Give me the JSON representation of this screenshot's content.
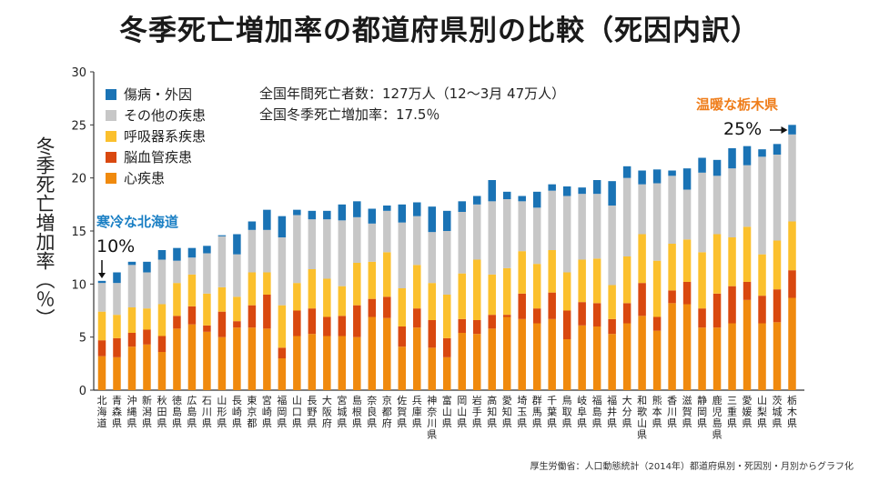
{
  "title": "冬季死亡増加率の都道府県別の比較（死因内訳）",
  "source": "厚生労働省：人口動態統計（2014年）都道府県別・死因別・月別からグラフ化",
  "info": {
    "line1": "全国年間死亡者数：127万人（12〜3月 47万人）",
    "line2": "全国冬季死亡増加率：17.5％"
  },
  "annotations": {
    "cold": "寒冷な北海道",
    "warm": "温暖な栃木県",
    "low_value": "10%",
    "high_value": "25%"
  },
  "colors": {
    "heart": "#f08a0e",
    "cerebro": "#d9480f",
    "resp": "#fbc02d",
    "other": "#c7c7c7",
    "injury": "#1a73b5",
    "anno_blue": "#1a7fc4",
    "anno_orange": "#ef7d1a"
  },
  "chart_data": {
    "type": "bar",
    "stacked": true,
    "ylabel": "冬季死亡増加率（％）",
    "ylim": [
      0,
      30
    ],
    "yticks": [
      0,
      5,
      10,
      15,
      20,
      25,
      30
    ],
    "grid": false,
    "legend_position": "top-left",
    "categories": [
      "北海道",
      "青森県",
      "沖縄県",
      "新潟県",
      "秋田県",
      "徳島県",
      "広島県",
      "石川県",
      "山形県",
      "長崎県",
      "東京都",
      "宮崎県",
      "福岡県",
      "山口県",
      "長野県",
      "大阪府",
      "宮城県",
      "島根県",
      "奈良県",
      "京都府",
      "佐賀県",
      "兵庫県",
      "神奈川県",
      "富山県",
      "岡山県",
      "岩手県",
      "高知県",
      "愛知県",
      "埼玉県",
      "群馬県",
      "千葉県",
      "鳥取県",
      "岐阜県",
      "福島県",
      "福井県",
      "大分県",
      "和歌山県",
      "熊本県",
      "香川県",
      "滋賀県",
      "静岡県",
      "鹿児島県",
      "三重県",
      "愛媛県",
      "山梨県",
      "茨城県",
      "栃木県"
    ],
    "series": [
      {
        "name": "心疾患",
        "values": [
          3.2,
          3.1,
          4.1,
          4.3,
          3.6,
          5.8,
          6.2,
          5.5,
          5.0,
          5.9,
          5.9,
          5.8,
          3.0,
          5.1,
          5.3,
          5.1,
          5.1,
          5.0,
          6.9,
          6.8,
          4.1,
          5.9,
          4.0,
          3.1,
          5.4,
          5.3,
          5.8,
          6.9,
          6.7,
          6.3,
          6.7,
          4.8,
          6.1,
          6.0,
          5.3,
          6.3,
          7.0,
          5.6,
          8.2,
          8.1,
          5.9,
          5.9,
          6.3,
          8.5,
          6.3,
          6.4,
          8.7
        ]
      },
      {
        "name": "脳血管疾患",
        "values": [
          1.5,
          1.8,
          1.3,
          1.4,
          1.5,
          1.2,
          1.7,
          0.6,
          2.4,
          0.6,
          2.1,
          3.2,
          1.0,
          2.4,
          2.4,
          1.8,
          1.9,
          3.0,
          1.7,
          2.0,
          1.9,
          1.8,
          2.6,
          1.8,
          1.3,
          1.3,
          1.3,
          0.2,
          2.4,
          1.4,
          2.5,
          2.7,
          2.2,
          2.2,
          1.4,
          1.9,
          3.1,
          1.3,
          1.2,
          2.1,
          1.8,
          3.2,
          3.5,
          1.7,
          2.6,
          3.1,
          2.6
        ]
      },
      {
        "name": "呼吸器系疾患",
        "values": [
          2.7,
          2.2,
          2.4,
          2.0,
          3.0,
          3.1,
          3.0,
          3.0,
          2.3,
          2.3,
          3.1,
          2.1,
          4.0,
          2.6,
          3.7,
          3.6,
          2.8,
          4.0,
          3.5,
          4.2,
          3.6,
          4.1,
          3.5,
          4.1,
          4.3,
          5.7,
          3.8,
          4.4,
          4.0,
          4.2,
          4.0,
          3.6,
          4.0,
          4.2,
          3.2,
          4.4,
          4.6,
          5.3,
          4.4,
          4.0,
          5.3,
          5.6,
          4.6,
          5.2,
          3.9,
          4.6,
          4.6
        ]
      },
      {
        "name": "その他の疾患",
        "values": [
          2.7,
          3.0,
          4.0,
          3.4,
          4.2,
          2.1,
          1.6,
          3.8,
          4.8,
          4.0,
          4.0,
          4.0,
          6.4,
          6.4,
          4.7,
          5.6,
          6.2,
          4.3,
          3.6,
          3.9,
          6.2,
          4.6,
          4.8,
          6.0,
          5.8,
          5.2,
          6.9,
          6.5,
          4.7,
          5.3,
          5.6,
          7.2,
          6.2,
          6.1,
          7.5,
          7.4,
          4.7,
          7.3,
          6.4,
          4.7,
          7.5,
          5.5,
          6.5,
          5.8,
          9.2,
          8.1,
          8.2
        ]
      },
      {
        "name": "傷病・外因",
        "values": [
          0.2,
          1.0,
          0.3,
          1.0,
          0.9,
          1.2,
          0.9,
          0.7,
          0.1,
          1.9,
          0.8,
          1.9,
          2.0,
          0.5,
          0.8,
          0.8,
          1.5,
          1.5,
          1.4,
          0.5,
          1.7,
          1.3,
          2.4,
          1.9,
          1.0,
          0.8,
          2.0,
          0.7,
          0.5,
          1.5,
          0.6,
          0.9,
          0.6,
          1.3,
          2.3,
          1.1,
          1.3,
          1.3,
          0.5,
          2.0,
          1.4,
          1.5,
          1.9,
          1.8,
          0.7,
          1.0,
          0.9
        ]
      }
    ]
  }
}
